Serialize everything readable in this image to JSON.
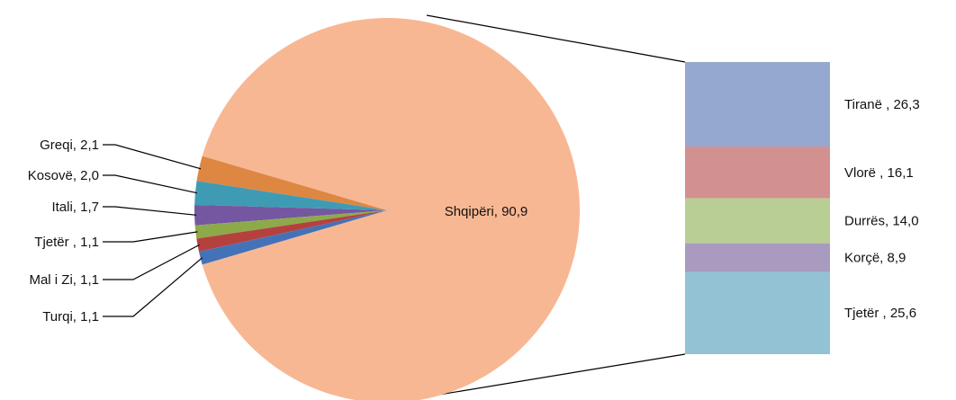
{
  "chart_data": {
    "type": "pie",
    "title": "",
    "main_slices": [
      {
        "label": "Shqipëri",
        "value_text": "90,9",
        "value": 90.9,
        "color": "#F8B793"
      },
      {
        "label": "Greqi",
        "value_text": "2,1",
        "value": 2.1,
        "color": "#DD8743"
      },
      {
        "label": "Kosovë",
        "value_text": "2,0",
        "value": 2.0,
        "color": "#3F9BB3"
      },
      {
        "label": "Itali",
        "value_text": "1,7",
        "value": 1.7,
        "color": "#7457A0"
      },
      {
        "label": "Tjetër ",
        "value_text": "1,1",
        "value": 1.1,
        "color": "#8DAA4A"
      },
      {
        "label": "Mal i Zi",
        "value_text": "1,1",
        "value": 1.1,
        "color": "#B5413F"
      },
      {
        "label": "Turqi",
        "value_text": "1,1",
        "value": 1.1,
        "color": "#4472B8"
      }
    ],
    "breakdown_bar": {
      "of_slice": "Shqipëri",
      "segments": [
        {
          "label": "Tiranë ",
          "value_text": "26,3",
          "value": 26.3,
          "color": "#95A9D0"
        },
        {
          "label": "Vlorë ",
          "value_text": "16,1",
          "value": 16.1,
          "color": "#D39090"
        },
        {
          "label": "Durrës",
          "value_text": "14,0",
          "value": 14.0,
          "color": "#B8CE94"
        },
        {
          "label": "Korçë",
          "value_text": "8,9",
          "value": 8.9,
          "color": "#A99AC0"
        },
        {
          "label": "Tjetër ",
          "value_text": "25,6",
          "value": 25.6,
          "color": "#93C2D4"
        }
      ]
    }
  }
}
